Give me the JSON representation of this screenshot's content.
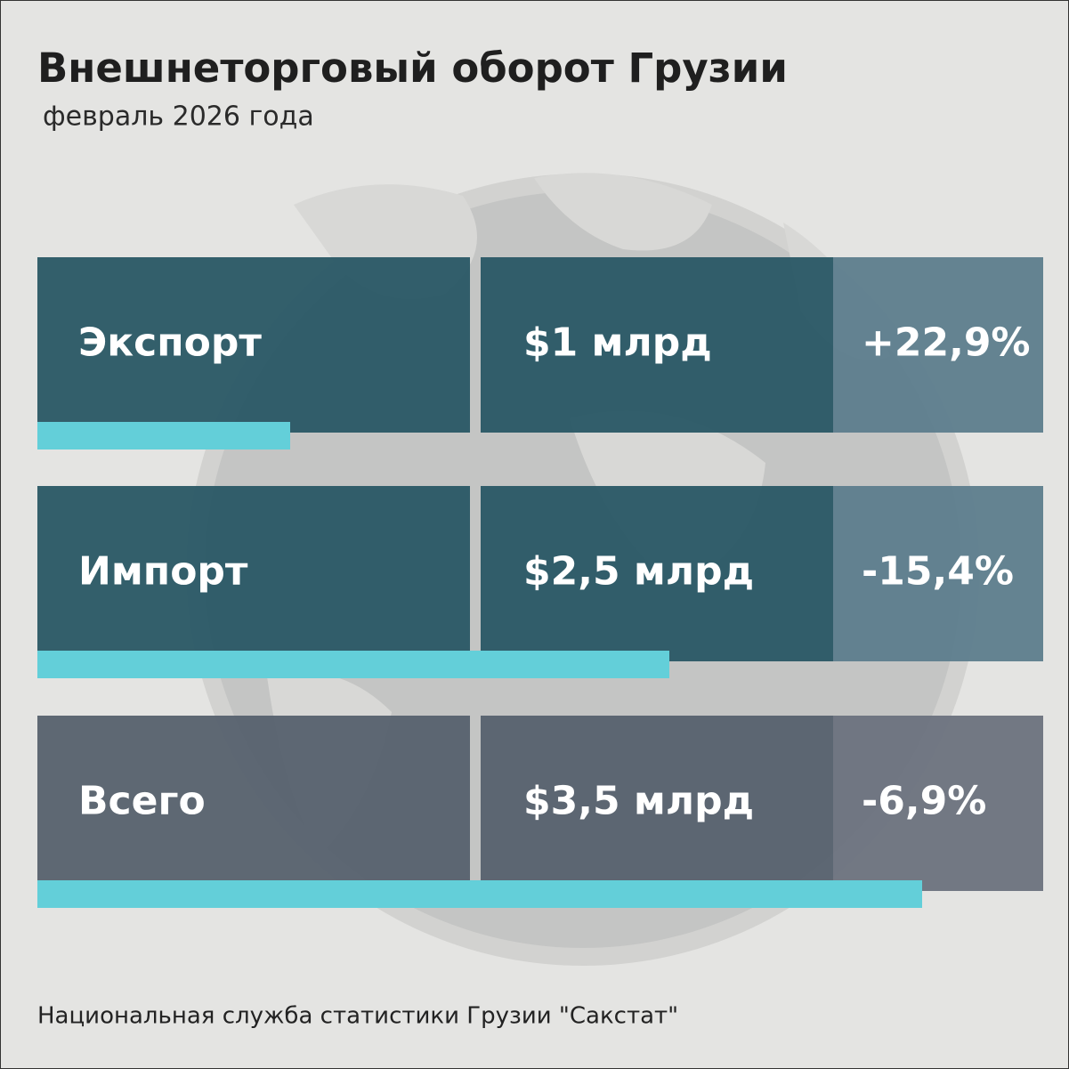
{
  "header": {
    "title": "Внешнеторговый оборот Грузии",
    "subtitle": "февраль 2026 года"
  },
  "rows": [
    {
      "label": "Экспорт",
      "amount": 1,
      "amount_label": "$1 млрд",
      "change": "+22,9%"
    },
    {
      "label": "Импорт",
      "amount": 2.5,
      "amount_label": "$2,5 млрд",
      "change": "-15,4%"
    },
    {
      "label": "Всего",
      "amount": 3.5,
      "amount_label": "$3,5 млрд",
      "change": "-6,9%"
    }
  ],
  "source": "Национальная служба статистики Грузии \"Сакстат\""
}
